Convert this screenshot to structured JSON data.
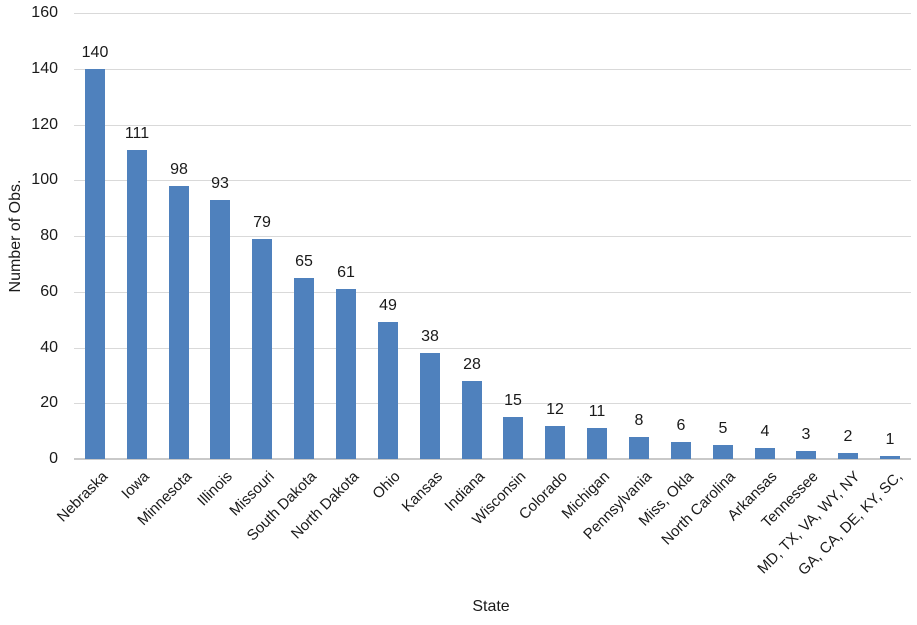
{
  "chart_data": {
    "type": "bar",
    "title": "",
    "categories": [
      "Nebraska",
      "Iowa",
      "Minnesota",
      "Illinois",
      "Missouri",
      "South Dakota",
      "North Dakota",
      "Ohio",
      "Kansas",
      "Indiana",
      "Wisconsin",
      "Colorado",
      "Michigan",
      "Pennsylvania",
      "Miss, Okla",
      "North Carolina",
      "Arkansas",
      "Tennessee",
      "MD, TX, VA, WY, NY",
      "GA, CA, DE, KY, SC,"
    ],
    "values": [
      140,
      111,
      98,
      93,
      79,
      65,
      61,
      49,
      38,
      28,
      15,
      12,
      11,
      8,
      6,
      5,
      4,
      3,
      2,
      1
    ],
    "data_labels": [
      140,
      111,
      98,
      93,
      79,
      65,
      61,
      49,
      38,
      28,
      15,
      12,
      11,
      8,
      6,
      5,
      4,
      3,
      2,
      1
    ],
    "xlabel": "State",
    "ylabel": "Number of Obs.",
    "ylim": [
      0,
      160
    ],
    "ytick_step": 20,
    "yticks": [
      0,
      20,
      40,
      60,
      80,
      100,
      120,
      140,
      160
    ],
    "grid": true,
    "legend": null,
    "colors": {
      "bar": "#4F81BD",
      "gridline": "#D9D9D9",
      "axis_line": "#C9C9C9",
      "text": "#1A1A1A"
    }
  }
}
